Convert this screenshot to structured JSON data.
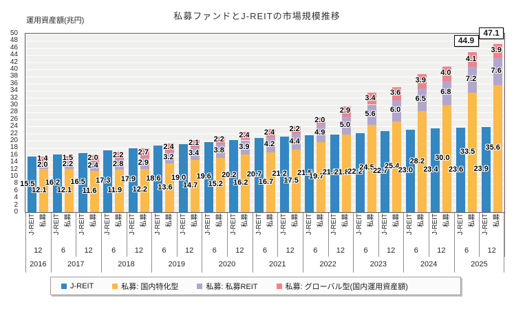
{
  "chart_data": {
    "type": "bar",
    "variant": "grouped-and-stacked",
    "title": "私募ファンドとJ-REITの市場規模推移",
    "ylabel": "運用資産額(兆円)",
    "ylim": [
      0,
      50
    ],
    "ytick_step": 2,
    "yticks": [
      0,
      2,
      4,
      6,
      8,
      10,
      12,
      14,
      16,
      18,
      20,
      22,
      24,
      26,
      28,
      30,
      32,
      34,
      36,
      38,
      40,
      42,
      44,
      46,
      48,
      50
    ],
    "grid": true,
    "legend_position": "bottom",
    "bar_labels": {
      "jreit": "J-REIT",
      "private": "私募"
    },
    "periods": [
      {
        "month": "12",
        "year": "2016"
      },
      {
        "month": "6",
        "year": "2017"
      },
      {
        "month": "12",
        "year": "2017"
      },
      {
        "month": "6",
        "year": "2018"
      },
      {
        "month": "12",
        "year": "2018"
      },
      {
        "month": "6",
        "year": "2019"
      },
      {
        "month": "12",
        "year": "2019"
      },
      {
        "month": "6",
        "year": "2020"
      },
      {
        "month": "12",
        "year": "2020"
      },
      {
        "month": "6",
        "year": "2021"
      },
      {
        "month": "12",
        "year": "2021"
      },
      {
        "month": "6",
        "year": "2022"
      },
      {
        "month": "12",
        "year": "2022"
      },
      {
        "month": "6",
        "year": "2023"
      },
      {
        "month": "12",
        "year": "2023"
      },
      {
        "month": "6",
        "year": "2024"
      },
      {
        "month": "12",
        "year": "2024"
      },
      {
        "month": "6",
        "year": "2025"
      },
      {
        "month": "12",
        "year": "2025"
      }
    ],
    "series": [
      {
        "name": "J-REIT",
        "color": "#3387c2",
        "stack": "jreit",
        "values": [
          15.5,
          16.2,
          16.5,
          17.3,
          17.9,
          18.6,
          19.0,
          19.6,
          20.2,
          20.7,
          21.2,
          21.5,
          21.8,
          22.2,
          22.7,
          23.0,
          23.4,
          23.6,
          23.9
        ]
      },
      {
        "name": "私募: 国内特化型",
        "color": "#fcba4a",
        "stack": "private",
        "values": [
          12.1,
          12.1,
          11.6,
          11.9,
          12.2,
          13.6,
          14.7,
          15.2,
          16.2,
          16.7,
          17.5,
          19.7,
          21.8,
          24.5,
          25.4,
          28.2,
          30.0,
          33.5,
          35.6
        ]
      },
      {
        "name": "私募: 私募REIT",
        "color": "#b3a6cc",
        "stack": "private",
        "values": [
          2.0,
          2.2,
          2.4,
          2.8,
          2.9,
          3.2,
          3.4,
          3.8,
          3.9,
          4.2,
          4.4,
          4.9,
          5.0,
          5.6,
          6.0,
          6.5,
          6.8,
          7.2,
          7.6
        ]
      },
      {
        "name": "私募: グローバル型(国内運用資産額)",
        "color": "#f0838c",
        "stack": "private",
        "values": [
          1.4,
          1.5,
          2.0,
          2.2,
          2.7,
          2.4,
          2.1,
          2.2,
          2.4,
          2.4,
          2.2,
          2.0,
          2.9,
          3.4,
          3.6,
          3.9,
          4.0,
          4.1,
          3.9
        ]
      }
    ],
    "totals": [
      {
        "period_index": 17,
        "value": 44.9
      },
      {
        "period_index": 18,
        "value": 47.1
      }
    ]
  }
}
